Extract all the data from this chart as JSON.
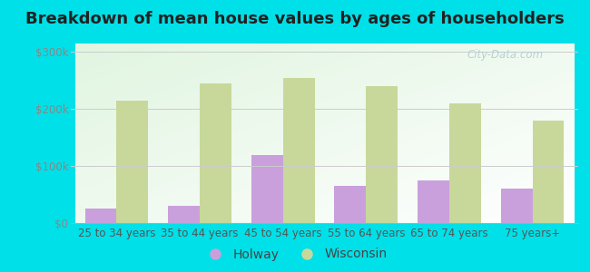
{
  "title": "Breakdown of mean house values by ages of householders",
  "categories": [
    "25 to 34 years",
    "35 to 44 years",
    "45 to 54 years",
    "55 to 64 years",
    "65 to 74 years",
    "75 years+"
  ],
  "holway_values": [
    25000,
    30000,
    120000,
    65000,
    75000,
    60000
  ],
  "wisconsin_values": [
    215000,
    245000,
    255000,
    240000,
    210000,
    180000
  ],
  "holway_color": "#c9a0dc",
  "wisconsin_color": "#c8d89a",
  "background_outer": "#00e0e8",
  "background_inner_gradient": true,
  "yticks": [
    0,
    100000,
    200000,
    300000
  ],
  "ytick_labels": [
    "$0",
    "$100k",
    "$200k",
    "$300k"
  ],
  "ylim": [
    0,
    315000
  ],
  "legend_holway": "Holway",
  "legend_wisconsin": "Wisconsin",
  "bar_width": 0.38,
  "title_fontsize": 13,
  "tick_fontsize": 8.5,
  "legend_fontsize": 10,
  "watermark": "City-Data.com",
  "watermark_color": "#b0c8d0",
  "ytick_color": "#888888",
  "xtick_color": "#555555"
}
